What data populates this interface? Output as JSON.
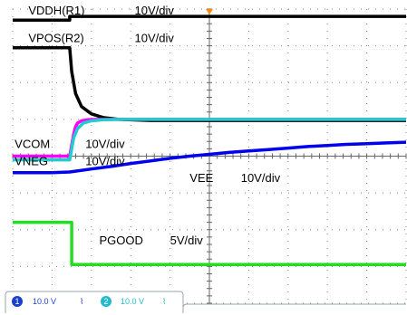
{
  "chart_data": {
    "type": "line",
    "title": "",
    "xlabel": "",
    "ylabel": "",
    "grid": true,
    "grid_divisions": {
      "x": 10,
      "y": 8
    },
    "x_range_div": [
      0,
      10
    ],
    "y_range_div": [
      0,
      8
    ],
    "x_unit": "div",
    "y_unit": "div",
    "series": [
      {
        "id": "vddh",
        "color": "#000000",
        "x": [
          0,
          1.2,
          1.45,
          1.45,
          10
        ],
        "y": [
          7.7,
          7.7,
          7.7,
          7.8,
          7.8
        ]
      },
      {
        "id": "vpos",
        "color": "#000000",
        "x": [
          0,
          1.45,
          1.5,
          1.6,
          1.75,
          2.0,
          2.3,
          2.7,
          3.5,
          10
        ],
        "y": [
          6.95,
          6.95,
          6.3,
          5.7,
          5.35,
          5.15,
          5.05,
          5.0,
          4.97,
          4.97
        ]
      },
      {
        "id": "vcom",
        "color": "#ff00ff",
        "x": [
          0,
          1.45,
          1.5,
          1.55,
          1.6,
          1.65,
          1.75,
          1.9,
          2.1,
          2.4,
          10
        ],
        "y": [
          4.0,
          4.0,
          4.3,
          4.6,
          4.8,
          4.9,
          4.96,
          4.99,
          5.0,
          5.0,
          5.0
        ]
      },
      {
        "id": "vneg",
        "color": "#22cccc",
        "x": [
          0,
          1.45,
          1.5,
          1.55,
          1.65,
          1.8,
          2.0,
          2.3,
          2.7,
          10
        ],
        "y": [
          3.9,
          3.9,
          4.2,
          4.5,
          4.75,
          4.9,
          4.96,
          4.99,
          5.0,
          5.0
        ]
      },
      {
        "id": "vee",
        "color": "#0000ee",
        "x": [
          0,
          1.0,
          1.45,
          2.0,
          2.5,
          3.0,
          3.5,
          4.0,
          4.5,
          5.0,
          5.5,
          6.0,
          6.5,
          7.0,
          7.5,
          8.0,
          8.5,
          9.0,
          9.5,
          10
        ],
        "y": [
          3.55,
          3.55,
          3.57,
          3.65,
          3.72,
          3.8,
          3.87,
          3.94,
          4.0,
          4.05,
          4.1,
          4.14,
          4.18,
          4.22,
          4.26,
          4.29,
          4.32,
          4.34,
          4.36,
          4.38
        ]
      },
      {
        "id": "pgood",
        "color": "#22dd22",
        "x": [
          0,
          1.45,
          1.5,
          1.5,
          10
        ],
        "y": [
          2.2,
          2.2,
          2.2,
          1.05,
          1.05
        ]
      }
    ],
    "annotations": [
      {
        "id": "vddh_name",
        "text": "VDDH(R1)",
        "x": 0.4,
        "y": 7.85
      },
      {
        "id": "vddh_scale",
        "text": "10V/div",
        "x": 3.1,
        "y": 7.85
      },
      {
        "id": "vpos_name",
        "text": "VPOS(R2)",
        "x": 0.4,
        "y": 7.1
      },
      {
        "id": "vpos_scale",
        "text": "10V/div",
        "x": 3.1,
        "y": 7.1
      },
      {
        "id": "vcom_name",
        "text": "VCOM",
        "x": 0.05,
        "y": 4.22
      },
      {
        "id": "vcom_scale",
        "text": "10V/div",
        "x": 1.85,
        "y": 4.22
      },
      {
        "id": "vneg_name",
        "text": "VNEG",
        "x": 0.05,
        "y": 3.75
      },
      {
        "id": "vneg_scale",
        "text": "10V/div",
        "x": 1.85,
        "y": 3.75
      },
      {
        "id": "vee_name",
        "text": "VEE",
        "x": 4.5,
        "y": 3.3
      },
      {
        "id": "vee_scale",
        "text": "10V/div",
        "x": 5.8,
        "y": 3.3
      },
      {
        "id": "pgood_name",
        "text": "PGOOD",
        "x": 2.2,
        "y": 1.6
      },
      {
        "id": "pgood_scale",
        "text": "5V/div",
        "x": 4.0,
        "y": 1.6
      }
    ]
  },
  "status_bar": {
    "ch1": {
      "number": "1",
      "scale": "10.0 V",
      "coupling": "⌇",
      "color": "#1a3fcc"
    },
    "ch2": {
      "number": "2",
      "scale": "10.0 V",
      "coupling": "⌇",
      "color": "#22bbcc"
    }
  },
  "trigger_marker_color": "#ff8800"
}
